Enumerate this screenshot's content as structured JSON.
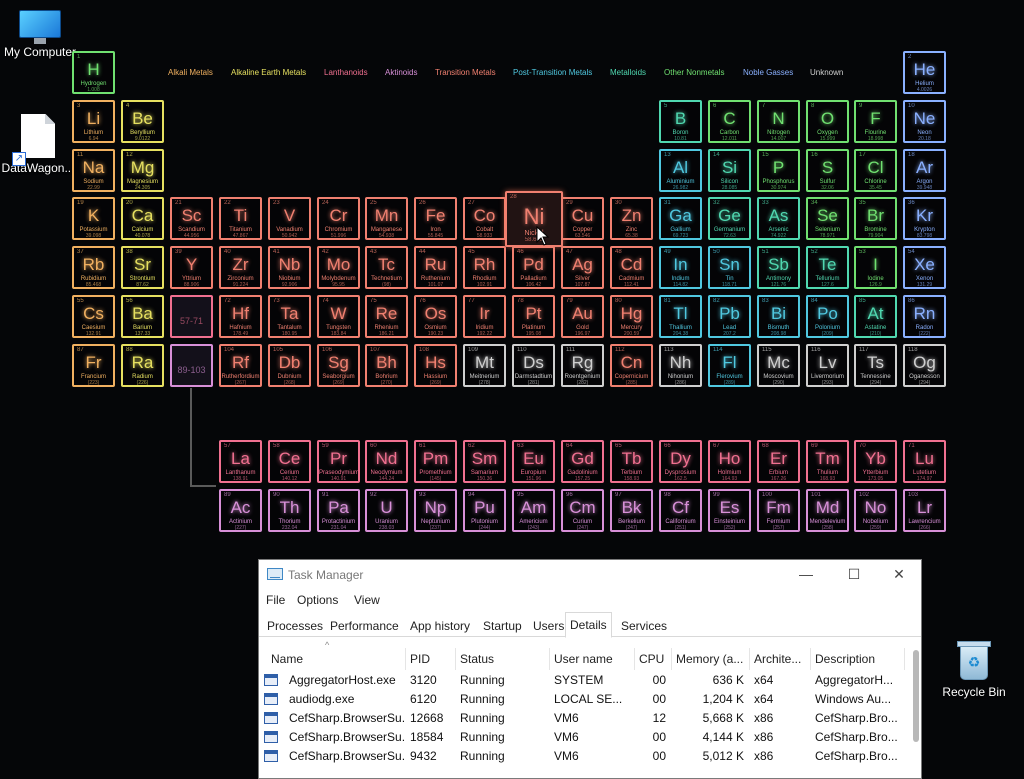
{
  "desktop": {
    "icons": [
      {
        "label": "My Computer",
        "kind": "monitor"
      },
      {
        "label": "DataWagon...",
        "kind": "file"
      },
      {
        "label": "Recycle Bin",
        "kind": "bin"
      }
    ]
  },
  "colors": {
    "alkali": "#f0b060",
    "alkaline": "#e6e060",
    "lanthanoid": "#f07090",
    "actinoid": "#d890d8",
    "transition": "#f08070",
    "post": "#50c8e0",
    "metalloid": "#50d8b0",
    "nonmetal": "#70e070",
    "noble": "#8ab0ff",
    "unknown": "#cfcfcf"
  },
  "legend": [
    {
      "label": "Alkali Metals",
      "cat": "alkali"
    },
    {
      "label": "Alkaline Earth Metals",
      "cat": "alkaline"
    },
    {
      "label": "Lanthanoids",
      "cat": "lanthanoid"
    },
    {
      "label": "Aktinoids",
      "cat": "actinoid"
    },
    {
      "label": "Transition Metals",
      "cat": "transition"
    },
    {
      "label": "Post-Transition Metals",
      "cat": "post"
    },
    {
      "label": "Metalloids",
      "cat": "metalloid"
    },
    {
      "label": "Other Nonmetals",
      "cat": "nonmetal"
    },
    {
      "label": "Noble Gasses",
      "cat": "noble"
    },
    {
      "label": "Unknown",
      "cat": "unknown"
    }
  ],
  "periodic": {
    "hovered": "Ni",
    "elements": [
      [
        "H",
        "Hydrogen",
        "1.008",
        "nonmetal",
        1,
        1,
        1
      ],
      [
        "He",
        "Helium",
        "4.0026",
        "noble",
        2,
        18,
        1
      ],
      [
        "Li",
        "Lithium",
        "6.94",
        "alkali",
        3,
        1,
        2
      ],
      [
        "Be",
        "Beryllium",
        "9.0122",
        "alkaline",
        4,
        2,
        2
      ],
      [
        "B",
        "Boron",
        "10.81",
        "metalloid",
        5,
        13,
        2
      ],
      [
        "C",
        "Carbon",
        "12.011",
        "nonmetal",
        6,
        14,
        2
      ],
      [
        "N",
        "Nitrogen",
        "14.007",
        "nonmetal",
        7,
        15,
        2
      ],
      [
        "O",
        "Oxygen",
        "15.999",
        "nonmetal",
        8,
        16,
        2
      ],
      [
        "F",
        "Flourine",
        "18.998",
        "nonmetal",
        9,
        17,
        2
      ],
      [
        "Ne",
        "Neon",
        "20.18",
        "noble",
        10,
        18,
        2
      ],
      [
        "Na",
        "Sodium",
        "22.99",
        "alkali",
        11,
        1,
        3
      ],
      [
        "Mg",
        "Magnesium",
        "24.305",
        "alkaline",
        12,
        2,
        3
      ],
      [
        "Al",
        "Aluminium",
        "26.982",
        "post",
        13,
        13,
        3
      ],
      [
        "Si",
        "Silicon",
        "28.085",
        "metalloid",
        14,
        14,
        3
      ],
      [
        "P",
        "Phosphorus",
        "30.974",
        "nonmetal",
        15,
        15,
        3
      ],
      [
        "S",
        "Sulfur",
        "32.06",
        "nonmetal",
        16,
        16,
        3
      ],
      [
        "Cl",
        "Chlorine",
        "35.45",
        "nonmetal",
        17,
        17,
        3
      ],
      [
        "Ar",
        "Argon",
        "39.948",
        "noble",
        18,
        18,
        3
      ],
      [
        "K",
        "Potassium",
        "39.098",
        "alkali",
        19,
        1,
        4
      ],
      [
        "Ca",
        "Calcium",
        "40.078",
        "alkaline",
        20,
        2,
        4
      ],
      [
        "Sc",
        "Scandium",
        "44.956",
        "transition",
        21,
        3,
        4
      ],
      [
        "Ti",
        "Titanium",
        "47.867",
        "transition",
        22,
        4,
        4
      ],
      [
        "V",
        "Vanadium",
        "50.942",
        "transition",
        23,
        5,
        4
      ],
      [
        "Cr",
        "Chromium",
        "51.996",
        "transition",
        24,
        6,
        4
      ],
      [
        "Mn",
        "Manganese",
        "54.938",
        "transition",
        25,
        7,
        4
      ],
      [
        "Fe",
        "Iron",
        "55.845",
        "transition",
        26,
        8,
        4
      ],
      [
        "Co",
        "Cobalt",
        "58.933",
        "transition",
        27,
        9,
        4
      ],
      [
        "Ni",
        "Nickel",
        "58.693",
        "transition",
        28,
        10,
        4
      ],
      [
        "Cu",
        "Copper",
        "63.546",
        "transition",
        29,
        11,
        4
      ],
      [
        "Zn",
        "Zinc",
        "65.38",
        "transition",
        30,
        12,
        4
      ],
      [
        "Ga",
        "Gallium",
        "69.723",
        "post",
        31,
        13,
        4
      ],
      [
        "Ge",
        "Germanium",
        "72.63",
        "metalloid",
        32,
        14,
        4
      ],
      [
        "As",
        "Arsenic",
        "74.922",
        "metalloid",
        33,
        15,
        4
      ],
      [
        "Se",
        "Selenium",
        "78.971",
        "nonmetal",
        34,
        16,
        4
      ],
      [
        "Br",
        "Bromine",
        "79.904",
        "nonmetal",
        35,
        17,
        4
      ],
      [
        "Kr",
        "Krypton",
        "83.798",
        "noble",
        36,
        18,
        4
      ],
      [
        "Rb",
        "Rubidium",
        "85.468",
        "alkali",
        37,
        1,
        5
      ],
      [
        "Sr",
        "Strontium",
        "87.62",
        "alkaline",
        38,
        2,
        5
      ],
      [
        "Y",
        "Yttrium",
        "88.906",
        "transition",
        39,
        3,
        5
      ],
      [
        "Zr",
        "Zirconium",
        "91.224",
        "transition",
        40,
        4,
        5
      ],
      [
        "Nb",
        "Niobium",
        "92.906",
        "transition",
        41,
        5,
        5
      ],
      [
        "Mo",
        "Molybdenum",
        "95.95",
        "transition",
        42,
        6,
        5
      ],
      [
        "Tc",
        "Technetium",
        "(98)",
        "transition",
        43,
        7,
        5
      ],
      [
        "Ru",
        "Ruthenium",
        "101.07",
        "transition",
        44,
        8,
        5
      ],
      [
        "Rh",
        "Rhodium",
        "102.91",
        "transition",
        45,
        9,
        5
      ],
      [
        "Pd",
        "Palladium",
        "106.42",
        "transition",
        46,
        10,
        5
      ],
      [
        "Ag",
        "Silver",
        "107.87",
        "transition",
        47,
        11,
        5
      ],
      [
        "Cd",
        "Cadmium",
        "112.41",
        "transition",
        48,
        12,
        5
      ],
      [
        "In",
        "Indium",
        "114.82",
        "post",
        49,
        13,
        5
      ],
      [
        "Sn",
        "Tin",
        "118.71",
        "post",
        50,
        14,
        5
      ],
      [
        "Sb",
        "Antimony",
        "121.76",
        "metalloid",
        51,
        15,
        5
      ],
      [
        "Te",
        "Tellurium",
        "127.6",
        "metalloid",
        52,
        16,
        5
      ],
      [
        "I",
        "Iodine",
        "126.9",
        "nonmetal",
        53,
        17,
        5
      ],
      [
        "Xe",
        "Xenon",
        "131.29",
        "noble",
        54,
        18,
        5
      ],
      [
        "Cs",
        "Caesium",
        "132.91",
        "alkali",
        55,
        1,
        6
      ],
      [
        "Ba",
        "Barium",
        "137.33",
        "alkaline",
        56,
        2,
        6
      ],
      [
        "57-71",
        "",
        "",
        "lanthanoid",
        0,
        3,
        6
      ],
      [
        "Hf",
        "Hafnium",
        "178.49",
        "transition",
        72,
        4,
        6
      ],
      [
        "Ta",
        "Tantalum",
        "180.95",
        "transition",
        73,
        5,
        6
      ],
      [
        "W",
        "Tungsten",
        "183.84",
        "transition",
        74,
        6,
        6
      ],
      [
        "Re",
        "Rhenium",
        "186.21",
        "transition",
        75,
        7,
        6
      ],
      [
        "Os",
        "Osmium",
        "190.23",
        "transition",
        76,
        8,
        6
      ],
      [
        "Ir",
        "Iridium",
        "192.22",
        "transition",
        77,
        9,
        6
      ],
      [
        "Pt",
        "Platinum",
        "195.08",
        "transition",
        78,
        10,
        6
      ],
      [
        "Au",
        "Gold",
        "196.97",
        "transition",
        79,
        11,
        6
      ],
      [
        "Hg",
        "Mercury",
        "200.59",
        "transition",
        80,
        12,
        6
      ],
      [
        "Tl",
        "Thallium",
        "204.38",
        "post",
        81,
        13,
        6
      ],
      [
        "Pb",
        "Lead",
        "207.2",
        "post",
        82,
        14,
        6
      ],
      [
        "Bi",
        "Bismuth",
        "208.98",
        "post",
        83,
        15,
        6
      ],
      [
        "Po",
        "Polonium",
        "(209)",
        "post",
        84,
        16,
        6
      ],
      [
        "At",
        "Astatine",
        "(210)",
        "metalloid",
        85,
        17,
        6
      ],
      [
        "Rn",
        "Radon",
        "(222)",
        "noble",
        86,
        18,
        6
      ],
      [
        "Fr",
        "Francium",
        "(223)",
        "alkali",
        87,
        1,
        7
      ],
      [
        "Ra",
        "Radium",
        "(226)",
        "alkaline",
        88,
        2,
        7
      ],
      [
        "89-103",
        "",
        "",
        "actinoid",
        0,
        3,
        7
      ],
      [
        "Rf",
        "Rutherfordium",
        "(267)",
        "transition",
        104,
        4,
        7
      ],
      [
        "Db",
        "Dubnium",
        "(268)",
        "transition",
        105,
        5,
        7
      ],
      [
        "Sg",
        "Seaborgium",
        "(269)",
        "transition",
        106,
        6,
        7
      ],
      [
        "Bh",
        "Bohrium",
        "(270)",
        "transition",
        107,
        7,
        7
      ],
      [
        "Hs",
        "Hassium",
        "(269)",
        "transition",
        108,
        8,
        7
      ],
      [
        "Mt",
        "Meitnerium",
        "(278)",
        "unknown",
        109,
        9,
        7
      ],
      [
        "Ds",
        "Darmstadtium",
        "(281)",
        "unknown",
        110,
        10,
        7
      ],
      [
        "Rg",
        "Roentgenium",
        "(282)",
        "unknown",
        111,
        11,
        7
      ],
      [
        "Cn",
        "Copernicium",
        "(285)",
        "transition",
        112,
        12,
        7
      ],
      [
        "Nh",
        "Nihonium",
        "(286)",
        "unknown",
        113,
        13,
        7
      ],
      [
        "Fl",
        "Flerovium",
        "(289)",
        "post",
        114,
        14,
        7
      ],
      [
        "Mc",
        "Moscovium",
        "(290)",
        "unknown",
        115,
        15,
        7
      ],
      [
        "Lv",
        "Livermorium",
        "(293)",
        "unknown",
        116,
        16,
        7
      ],
      [
        "Ts",
        "Tennessine",
        "(294)",
        "unknown",
        117,
        17,
        7
      ],
      [
        "Og",
        "Oganesson",
        "(294)",
        "unknown",
        118,
        18,
        7
      ],
      [
        "La",
        "Lanthanum",
        "138.91",
        "lanthanoid",
        57,
        4,
        9
      ],
      [
        "Ce",
        "Cerium",
        "140.12",
        "lanthanoid",
        58,
        5,
        9
      ],
      [
        "Pr",
        "Praseodymium",
        "140.91",
        "lanthanoid",
        59,
        6,
        9
      ],
      [
        "Nd",
        "Neodymium",
        "144.24",
        "lanthanoid",
        60,
        7,
        9
      ],
      [
        "Pm",
        "Promethium",
        "(145)",
        "lanthanoid",
        61,
        8,
        9
      ],
      [
        "Sm",
        "Samarium",
        "150.36",
        "lanthanoid",
        62,
        9,
        9
      ],
      [
        "Eu",
        "Europium",
        "151.96",
        "lanthanoid",
        63,
        10,
        9
      ],
      [
        "Gd",
        "Gadolinium",
        "157.25",
        "lanthanoid",
        64,
        11,
        9
      ],
      [
        "Tb",
        "Terbium",
        "158.93",
        "lanthanoid",
        65,
        12,
        9
      ],
      [
        "Dy",
        "Dysprosium",
        "162.5",
        "lanthanoid",
        66,
        13,
        9
      ],
      [
        "Ho",
        "Holmium",
        "164.93",
        "lanthanoid",
        67,
        14,
        9
      ],
      [
        "Er",
        "Erbium",
        "167.26",
        "lanthanoid",
        68,
        15,
        9
      ],
      [
        "Tm",
        "Thulium",
        "168.93",
        "lanthanoid",
        69,
        16,
        9
      ],
      [
        "Yb",
        "Ytterbium",
        "173.05",
        "lanthanoid",
        70,
        17,
        9
      ],
      [
        "Lu",
        "Lutetium",
        "174.97",
        "lanthanoid",
        71,
        18,
        9
      ],
      [
        "Ac",
        "Actinium",
        "(227)",
        "actinoid",
        89,
        4,
        10
      ],
      [
        "Th",
        "Thorium",
        "232.04",
        "actinoid",
        90,
        5,
        10
      ],
      [
        "Pa",
        "Protactinium",
        "231.04",
        "actinoid",
        91,
        6,
        10
      ],
      [
        "U",
        "Uranium",
        "238.03",
        "actinoid",
        92,
        7,
        10
      ],
      [
        "Np",
        "Neptunium",
        "(237)",
        "actinoid",
        93,
        8,
        10
      ],
      [
        "Pu",
        "Plutonium",
        "(244)",
        "actinoid",
        94,
        9,
        10
      ],
      [
        "Am",
        "Americium",
        "(243)",
        "actinoid",
        95,
        10,
        10
      ],
      [
        "Cm",
        "Curium",
        "(247)",
        "actinoid",
        96,
        11,
        10
      ],
      [
        "Bk",
        "Berkelium",
        "(247)",
        "actinoid",
        97,
        12,
        10
      ],
      [
        "Cf",
        "Californium",
        "(251)",
        "actinoid",
        98,
        13,
        10
      ],
      [
        "Es",
        "Einsteinium",
        "(252)",
        "actinoid",
        99,
        14,
        10
      ],
      [
        "Fm",
        "Fermium",
        "(257)",
        "actinoid",
        100,
        15,
        10
      ],
      [
        "Md",
        "Mendelevium",
        "(258)",
        "actinoid",
        101,
        16,
        10
      ],
      [
        "No",
        "Nobelium",
        "(259)",
        "actinoid",
        102,
        17,
        10
      ],
      [
        "Lr",
        "Lawrencium",
        "(266)",
        "actinoid",
        103,
        18,
        10
      ]
    ]
  },
  "taskmanager": {
    "title": "Task Manager",
    "window_buttons": {
      "minimize": "—",
      "maximize": "☐",
      "close": "✕"
    },
    "menu": [
      "File",
      "Options",
      "View"
    ],
    "tabs": [
      "Processes",
      "Performance",
      "App history",
      "Startup",
      "Users",
      "Details",
      "Services"
    ],
    "active_tab": "Details",
    "columns": [
      "Name",
      "PID",
      "Status",
      "User name",
      "CPU",
      "Memory (a...",
      "Archite...",
      "Description"
    ],
    "rows": [
      [
        "AggregatorHost.exe",
        "3120",
        "Running",
        "SYSTEM",
        "00",
        "636 K",
        "x64",
        "AggregatorH..."
      ],
      [
        "audiodg.exe",
        "6120",
        "Running",
        "LOCAL SE...",
        "00",
        "1,204 K",
        "x64",
        "Windows Au..."
      ],
      [
        "CefSharp.BrowserSu...",
        "12668",
        "Running",
        "VM6",
        "12",
        "5,668 K",
        "x86",
        "CefSharp.Bro..."
      ],
      [
        "CefSharp.BrowserSu...",
        "18584",
        "Running",
        "VM6",
        "00",
        "4,144 K",
        "x86",
        "CefSharp.Bro..."
      ],
      [
        "CefSharp.BrowserSu...",
        "9432",
        "Running",
        "VM6",
        "00",
        "5,012 K",
        "x86",
        "CefSharp.Bro..."
      ]
    ]
  }
}
